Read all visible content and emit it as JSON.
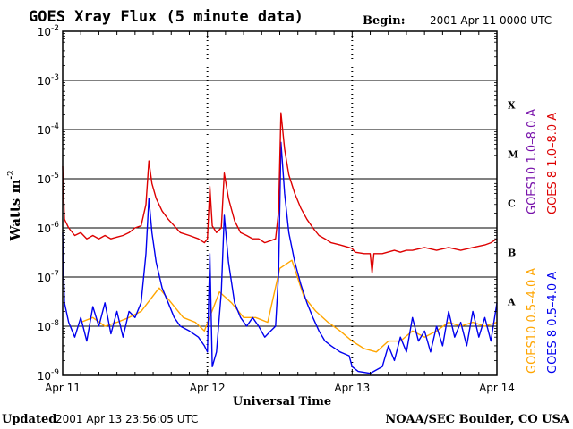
{
  "header": {
    "title": "GOES Xray Flux (5 minute data)",
    "begin_label": "Begin:",
    "begin_value": "2001 Apr 11 0000 UTC"
  },
  "footer": {
    "updated_label": "Updated",
    "updated_value": "2001 Apr 13 23:56:05 UTC",
    "credit": "NOAA/SEC Boulder, CO USA"
  },
  "colors": {
    "goes8_long": "#dd0000",
    "goes8_short": "#0000ee",
    "goes10_long": "#7711aa",
    "goes10_short": "#ffa500",
    "axis": "#000000"
  },
  "chart_data": {
    "type": "line",
    "title": "GOES Xray Flux (5 minute data)",
    "xlabel": "Universal Time",
    "ylabel": "Watts m",
    "ylabel_sup": "-2",
    "yscale": "log",
    "ylim": [
      1e-09,
      0.01
    ],
    "xlim": [
      0,
      72
    ],
    "x_unit": "hours since 2001 Apr 11 0000 UTC",
    "x_ticks": [
      {
        "value": 0,
        "label": "Apr 11"
      },
      {
        "value": 24,
        "label": "Apr 12"
      },
      {
        "value": 48,
        "label": "Apr 13"
      },
      {
        "value": 72,
        "label": "Apr 14"
      }
    ],
    "y_ticks": [
      {
        "value": 0.01,
        "base": "10",
        "exp": "-2"
      },
      {
        "value": 0.001,
        "base": "10",
        "exp": "-3"
      },
      {
        "value": 0.0001,
        "base": "10",
        "exp": "-4"
      },
      {
        "value": 1e-05,
        "base": "10",
        "exp": "-5"
      },
      {
        "value": 1e-06,
        "base": "10",
        "exp": "-6"
      },
      {
        "value": 1e-07,
        "base": "10",
        "exp": "-7"
      },
      {
        "value": 1e-08,
        "base": "10",
        "exp": "-8"
      },
      {
        "value": 1e-09,
        "base": "10",
        "exp": "-9"
      }
    ],
    "gridlines_at": [
      0.001,
      0.0001,
      1e-05,
      1e-06,
      1e-07,
      1e-08
    ],
    "flare_classes": [
      {
        "label": "X",
        "min": 0.0001,
        "max": 0.001
      },
      {
        "label": "M",
        "min": 1e-05,
        "max": 0.0001
      },
      {
        "label": "C",
        "min": 1e-06,
        "max": 1e-05
      },
      {
        "label": "B",
        "min": 1e-07,
        "max": 1e-06
      },
      {
        "label": "A",
        "min": 1e-08,
        "max": 1e-07
      }
    ],
    "legend": [
      {
        "name": "GOES10 1.0–8.0 A",
        "color_key": "goes10_long"
      },
      {
        "name": "GOES 8 1.0–8.0 A",
        "color_key": "goes8_long"
      },
      {
        "name": "GOES10 0.5–4.0 A",
        "color_key": "goes10_short"
      },
      {
        "name": "GOES 8 0.5–4.0 A",
        "color_key": "goes8_short"
      }
    ],
    "series": [
      {
        "name": "GOES 8 1.0-8.0 A",
        "color_key": "goes8_long",
        "points": [
          [
            0,
            1.8e-05
          ],
          [
            0.3,
            1.5e-06
          ],
          [
            1,
            1e-06
          ],
          [
            2,
            7e-07
          ],
          [
            3,
            8e-07
          ],
          [
            4,
            6e-07
          ],
          [
            5,
            7e-07
          ],
          [
            6,
            6e-07
          ],
          [
            7,
            7e-07
          ],
          [
            8,
            6e-07
          ],
          [
            9,
            6.5e-07
          ],
          [
            10,
            7e-07
          ],
          [
            11,
            8e-07
          ],
          [
            12,
            1e-06
          ],
          [
            13,
            1.1e-06
          ],
          [
            13.8,
            3e-06
          ],
          [
            14.3,
            2.3e-05
          ],
          [
            14.8,
            8e-06
          ],
          [
            15.5,
            4e-06
          ],
          [
            16.5,
            2.2e-06
          ],
          [
            17.5,
            1.5e-06
          ],
          [
            18.5,
            1.1e-06
          ],
          [
            19.5,
            8e-07
          ],
          [
            21,
            7e-07
          ],
          [
            22.5,
            6e-07
          ],
          [
            23.5,
            5e-07
          ],
          [
            24,
            6e-07
          ],
          [
            24.4,
            7e-06
          ],
          [
            24.8,
            1.1e-06
          ],
          [
            25.5,
            8e-07
          ],
          [
            26.3,
            1e-06
          ],
          [
            26.8,
            1.3e-05
          ],
          [
            27.5,
            4e-06
          ],
          [
            28.5,
            1.4e-06
          ],
          [
            29.5,
            8e-07
          ],
          [
            30.5,
            7e-07
          ],
          [
            31.5,
            6e-07
          ],
          [
            32.5,
            6e-07
          ],
          [
            33.5,
            5e-07
          ],
          [
            34.5,
            5.5e-07
          ],
          [
            35.3,
            6e-07
          ],
          [
            35.8,
            2.2e-06
          ],
          [
            36.2,
            0.00022
          ],
          [
            36.8,
            4e-05
          ],
          [
            37.5,
            1.2e-05
          ],
          [
            38.5,
            5e-06
          ],
          [
            39.5,
            2.5e-06
          ],
          [
            40.5,
            1.5e-06
          ],
          [
            41.5,
            1e-06
          ],
          [
            42.5,
            7e-07
          ],
          [
            43.5,
            6e-07
          ],
          [
            44.5,
            5e-07
          ],
          [
            46,
            4.5e-07
          ],
          [
            47.5,
            4e-07
          ],
          [
            48,
            3.8e-07
          ],
          [
            48.5,
            3.2e-07
          ],
          [
            50,
            3e-07
          ],
          [
            51,
            3e-07
          ],
          [
            51.3,
            1.2e-07
          ],
          [
            51.6,
            3e-07
          ],
          [
            53,
            3e-07
          ],
          [
            55,
            3.5e-07
          ],
          [
            56,
            3.2e-07
          ],
          [
            57,
            3.5e-07
          ],
          [
            58,
            3.5e-07
          ],
          [
            60,
            4e-07
          ],
          [
            62,
            3.5e-07
          ],
          [
            64,
            4e-07
          ],
          [
            66,
            3.5e-07
          ],
          [
            68,
            4e-07
          ],
          [
            70,
            4.5e-07
          ],
          [
            71,
            5e-07
          ],
          [
            72,
            6e-07
          ]
        ]
      },
      {
        "name": "GOES 8 0.5-4.0 A",
        "color_key": "goes8_short",
        "points": [
          [
            0,
            8e-07
          ],
          [
            0.3,
            3e-08
          ],
          [
            1,
            1.2e-08
          ],
          [
            2,
            6e-09
          ],
          [
            3,
            1.5e-08
          ],
          [
            4,
            5e-09
          ],
          [
            5,
            2.5e-08
          ],
          [
            6,
            1e-08
          ],
          [
            7,
            3e-08
          ],
          [
            8,
            7e-09
          ],
          [
            9,
            2e-08
          ],
          [
            10,
            6e-09
          ],
          [
            11,
            2e-08
          ],
          [
            12,
            1.5e-08
          ],
          [
            13,
            3e-08
          ],
          [
            13.8,
            3e-07
          ],
          [
            14.3,
            4e-06
          ],
          [
            14.8,
            8e-07
          ],
          [
            15.5,
            2e-07
          ],
          [
            16.5,
            6e-08
          ],
          [
            17.5,
            3e-08
          ],
          [
            18.5,
            1.5e-08
          ],
          [
            19.5,
            1e-08
          ],
          [
            21,
            8e-09
          ],
          [
            22.5,
            6e-09
          ],
          [
            23.5,
            4e-09
          ],
          [
            24,
            3e-09
          ],
          [
            24.4,
            3e-07
          ],
          [
            24.8,
            1.5e-09
          ],
          [
            25.5,
            3e-09
          ],
          [
            26.3,
            5e-08
          ],
          [
            26.8,
            1.8e-06
          ],
          [
            27.5,
            2e-07
          ],
          [
            28.5,
            3e-08
          ],
          [
            29.5,
            1.5e-08
          ],
          [
            30.5,
            1e-08
          ],
          [
            31.5,
            1.5e-08
          ],
          [
            32.5,
            1e-08
          ],
          [
            33.5,
            6e-09
          ],
          [
            34.5,
            8e-09
          ],
          [
            35.3,
            1e-08
          ],
          [
            35.8,
            1.2e-07
          ],
          [
            36.2,
            5.5e-05
          ],
          [
            36.8,
            5e-06
          ],
          [
            37.5,
            8e-07
          ],
          [
            38.5,
            2e-07
          ],
          [
            39.5,
            7e-08
          ],
          [
            40.5,
            3e-08
          ],
          [
            41.5,
            1.5e-08
          ],
          [
            42.5,
            8e-09
          ],
          [
            43.5,
            5e-09
          ],
          [
            44.5,
            4e-09
          ],
          [
            46,
            3e-09
          ],
          [
            47.5,
            2.5e-09
          ],
          [
            48,
            1.5e-09
          ],
          [
            49,
            1.2e-09
          ],
          [
            51,
            1.1e-09
          ],
          [
            53,
            1.5e-09
          ],
          [
            54,
            4e-09
          ],
          [
            55,
            2e-09
          ],
          [
            56,
            6e-09
          ],
          [
            57,
            3e-09
          ],
          [
            58,
            1.5e-08
          ],
          [
            59,
            5e-09
          ],
          [
            60,
            8e-09
          ],
          [
            61,
            3e-09
          ],
          [
            62,
            1e-08
          ],
          [
            63,
            4e-09
          ],
          [
            64,
            2e-08
          ],
          [
            65,
            6e-09
          ],
          [
            66,
            1.2e-08
          ],
          [
            67,
            4e-09
          ],
          [
            68,
            2e-08
          ],
          [
            69,
            6e-09
          ],
          [
            70,
            1.5e-08
          ],
          [
            71,
            5e-09
          ],
          [
            72,
            3e-08
          ]
        ]
      },
      {
        "name": "GOES10 0.5-4.0 A",
        "color_key": "goes10_short",
        "points": [
          [
            3,
            1.2e-08
          ],
          [
            5,
            1.5e-08
          ],
          [
            7,
            1e-08
          ],
          [
            9,
            1.2e-08
          ],
          [
            11,
            1.5e-08
          ],
          [
            13,
            2e-08
          ],
          [
            16,
            6e-08
          ],
          [
            18,
            3e-08
          ],
          [
            20,
            1.5e-08
          ],
          [
            22,
            1.2e-08
          ],
          [
            23.5,
            8e-09
          ],
          [
            26,
            5e-08
          ],
          [
            28,
            3e-08
          ],
          [
            30,
            1.5e-08
          ],
          [
            32,
            1.5e-08
          ],
          [
            34,
            1.2e-08
          ],
          [
            36,
            1.5e-07
          ],
          [
            38,
            2.2e-07
          ],
          [
            40,
            4e-08
          ],
          [
            42,
            2e-08
          ],
          [
            44,
            1.2e-08
          ],
          [
            46,
            8e-09
          ],
          [
            48,
            5e-09
          ],
          [
            50,
            3.5e-09
          ],
          [
            52,
            3e-09
          ],
          [
            54,
            5e-09
          ],
          [
            56,
            5e-09
          ],
          [
            58,
            8e-09
          ],
          [
            60,
            6e-09
          ],
          [
            62,
            8e-09
          ],
          [
            64,
            1.2e-08
          ],
          [
            66,
            1e-08
          ],
          [
            68,
            1.2e-08
          ],
          [
            70,
            1e-08
          ],
          [
            72,
            1.2e-08
          ]
        ]
      }
    ]
  }
}
